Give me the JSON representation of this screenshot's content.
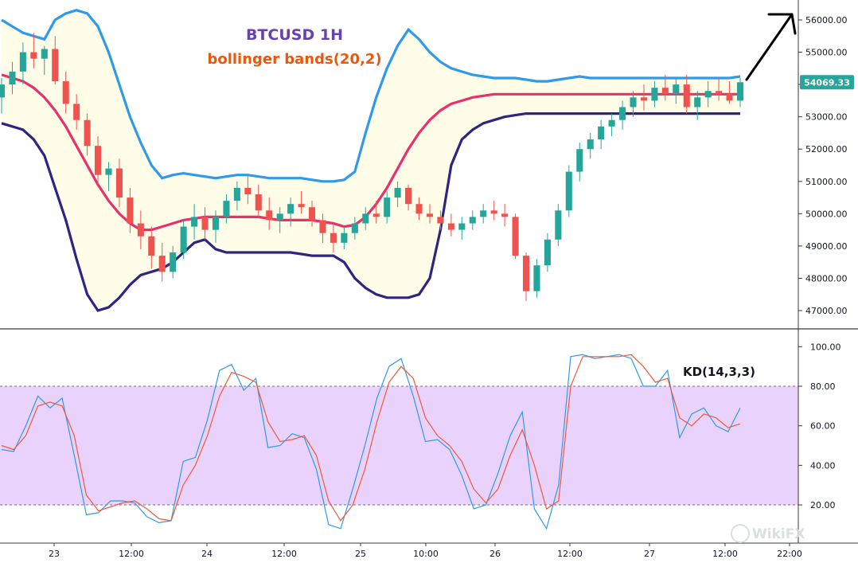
{
  "chart_data": [
    {
      "type": "candlestick",
      "title": "BTCUSD 1H",
      "subtitle": "bollinger bands(20,2)",
      "title_color": "#6a3fb5",
      "subtitle_color": "#e8590c",
      "ylim": [
        46500,
        56500
      ],
      "y_ticks": [
        "47000.00",
        "48000.00",
        "49000.00",
        "50000.00",
        "51000.00",
        "52000.00",
        "53000.00",
        "54000.00",
        "55000.00",
        "56000.00"
      ],
      "last_price": "54069.33",
      "last_price_color": "#26a69a",
      "x_ticks": [
        "23",
        "12:00",
        "24",
        "12:00",
        "25",
        "10:00",
        "26",
        "12:00",
        "27",
        "12:00",
        "22:00"
      ],
      "up_color": "#26a69a",
      "down_color": "#ef5350",
      "candles": [
        [
          53600,
          54200,
          53100,
          54000
        ],
        [
          54000,
          54700,
          53700,
          54400
        ],
        [
          54400,
          55300,
          54000,
          55000
        ],
        [
          55000,
          55600,
          54500,
          54800
        ],
        [
          54800,
          55200,
          54300,
          55100
        ],
        [
          55100,
          55500,
          54000,
          54100
        ],
        [
          54100,
          54400,
          53100,
          53400
        ],
        [
          53400,
          53700,
          52600,
          52900
        ],
        [
          52900,
          53100,
          51800,
          52100
        ],
        [
          52100,
          52400,
          50900,
          51200
        ],
        [
          51200,
          51600,
          50700,
          51400
        ],
        [
          51400,
          51700,
          50200,
          50500
        ],
        [
          50500,
          50800,
          49400,
          49700
        ],
        [
          49700,
          50100,
          48900,
          49300
        ],
        [
          49300,
          49600,
          48300,
          48700
        ],
        [
          48700,
          49100,
          47900,
          48200
        ],
        [
          48200,
          49000,
          48000,
          48800
        ],
        [
          48800,
          49800,
          48600,
          49600
        ],
        [
          49600,
          50300,
          49200,
          49900
        ],
        [
          49900,
          50200,
          49200,
          49500
        ],
        [
          49500,
          50100,
          49100,
          49900
        ],
        [
          49900,
          50600,
          49700,
          50400
        ],
        [
          50400,
          51000,
          50100,
          50800
        ],
        [
          50800,
          51200,
          50300,
          50600
        ],
        [
          50600,
          50900,
          49900,
          50100
        ],
        [
          50100,
          50500,
          49500,
          49800
        ],
        [
          49800,
          50200,
          49400,
          50000
        ],
        [
          50000,
          50500,
          49600,
          50300
        ],
        [
          50300,
          50700,
          50000,
          50200
        ],
        [
          50200,
          50400,
          49600,
          49800
        ],
        [
          49800,
          50000,
          49100,
          49400
        ],
        [
          49400,
          49700,
          48800,
          49100
        ],
        [
          49100,
          49600,
          48900,
          49400
        ],
        [
          49400,
          49900,
          49200,
          49700
        ],
        [
          49700,
          50200,
          49500,
          50000
        ],
        [
          50000,
          50400,
          49700,
          49900
        ],
        [
          49900,
          50700,
          49700,
          50500
        ],
        [
          50500,
          51000,
          50200,
          50800
        ],
        [
          50800,
          50900,
          50100,
          50300
        ],
        [
          50300,
          50500,
          49800,
          50000
        ],
        [
          50000,
          50300,
          49700,
          49900
        ],
        [
          49900,
          50100,
          49500,
          49700
        ],
        [
          49700,
          50000,
          49300,
          49500
        ],
        [
          49500,
          49900,
          49200,
          49700
        ],
        [
          49700,
          50100,
          49500,
          49900
        ],
        [
          49900,
          50300,
          49700,
          50100
        ],
        [
          50100,
          50400,
          49800,
          50000
        ],
        [
          50000,
          50300,
          49600,
          49900
        ],
        [
          49900,
          50000,
          48600,
          48700
        ],
        [
          48700,
          48800,
          47300,
          47600
        ],
        [
          47600,
          48600,
          47400,
          48400
        ],
        [
          48400,
          49400,
          48200,
          49200
        ],
        [
          49200,
          50300,
          49000,
          50100
        ],
        [
          50100,
          51500,
          49900,
          51300
        ],
        [
          51300,
          52200,
          51000,
          52000
        ],
        [
          52000,
          52500,
          51700,
          52300
        ],
        [
          52300,
          52900,
          52000,
          52700
        ],
        [
          52700,
          53100,
          52400,
          52900
        ],
        [
          52900,
          53500,
          52600,
          53300
        ],
        [
          53300,
          53800,
          53000,
          53600
        ],
        [
          53600,
          54000,
          53200,
          53500
        ],
        [
          53500,
          54100,
          53300,
          53900
        ],
        [
          53900,
          54300,
          53500,
          53700
        ],
        [
          53700,
          54200,
          53400,
          54000
        ],
        [
          54000,
          54300,
          53100,
          53300
        ],
        [
          53300,
          53800,
          52900,
          53600
        ],
        [
          53600,
          54100,
          53300,
          53800
        ],
        [
          53800,
          54200,
          53500,
          53700
        ],
        [
          53700,
          54100,
          53400,
          53500
        ],
        [
          53500,
          54200,
          53300,
          54069
        ]
      ],
      "bollinger": {
        "upper": [
          56000,
          55800,
          55600,
          55500,
          55400,
          56000,
          56200,
          56300,
          56200,
          55800,
          55000,
          54000,
          53000,
          52200,
          51500,
          51100,
          51200,
          51250,
          51200,
          51150,
          51100,
          51150,
          51200,
          51200,
          51150,
          51100,
          51100,
          51100,
          51100,
          51050,
          51000,
          51000,
          51050,
          51300,
          52500,
          53600,
          54500,
          55200,
          55700,
          55400,
          55000,
          54700,
          54500,
          54400,
          54300,
          54250,
          54200,
          54200,
          54200,
          54150,
          54100,
          54100,
          54150,
          54200,
          54250,
          54200,
          54200,
          54200,
          54200,
          54200,
          54200,
          54200,
          54200,
          54200,
          54200,
          54200,
          54200,
          54200,
          54200,
          54250
        ],
        "middle": [
          54300,
          54200,
          54100,
          53900,
          53600,
          53200,
          52700,
          52100,
          51500,
          50900,
          50400,
          50000,
          49700,
          49500,
          49500,
          49600,
          49700,
          49800,
          49850,
          49900,
          49900,
          49900,
          49900,
          49900,
          49900,
          49850,
          49800,
          49800,
          49800,
          49800,
          49750,
          49700,
          49600,
          49650,
          49900,
          50300,
          50800,
          51400,
          52000,
          52500,
          52900,
          53200,
          53400,
          53500,
          53600,
          53650,
          53700,
          53700,
          53700,
          53700,
          53700,
          53700,
          53700,
          53700,
          53700,
          53700,
          53700,
          53700,
          53700,
          53700,
          53700,
          53700,
          53700,
          53700,
          53700,
          53700,
          53700,
          53700,
          53700,
          53700
        ],
        "lower": [
          52800,
          52700,
          52600,
          52300,
          51800,
          50800,
          49800,
          48600,
          47500,
          47000,
          47100,
          47400,
          47800,
          48100,
          48200,
          48300,
          48500,
          48800,
          49100,
          49200,
          48900,
          48800,
          48800,
          48800,
          48800,
          48800,
          48800,
          48800,
          48750,
          48700,
          48700,
          48700,
          48500,
          48000,
          47700,
          47500,
          47400,
          47400,
          47400,
          47500,
          48000,
          49500,
          51500,
          52300,
          52600,
          52800,
          52900,
          53000,
          53050,
          53100,
          53100,
          53100,
          53100,
          53100,
          53100,
          53100,
          53100,
          53100,
          53100,
          53100,
          53100,
          53100,
          53100,
          53100,
          53100,
          53100,
          53100,
          53100,
          53100,
          53100
        ]
      },
      "band_colors": {
        "upper": "#2f9be8",
        "middle": "#e9306a",
        "lower": "#2d2483",
        "fill": "#fffce8"
      }
    },
    {
      "type": "line",
      "title": "KD(14,3,3)",
      "ylim": [
        0,
        105
      ],
      "y_ticks": [
        "20.00",
        "40.00",
        "60.00",
        "80.00",
        "100.00"
      ],
      "band": [
        20,
        80
      ],
      "band_color": "#e9d2fb",
      "series": [
        {
          "color": "#2f9be8",
          "values": [
            48,
            47,
            60,
            75,
            69,
            74,
            45,
            15,
            16,
            22,
            22,
            21,
            14,
            11,
            12,
            42,
            44,
            63,
            88,
            91,
            78,
            84,
            49,
            50,
            56,
            54,
            38,
            10,
            8,
            28,
            50,
            74,
            90,
            94,
            75,
            52,
            53,
            48,
            35,
            18,
            20,
            36,
            55,
            67,
            18,
            8,
            30,
            95,
            96,
            94,
            95,
            96,
            94,
            80,
            80,
            88,
            54,
            66,
            69,
            60,
            57,
            69
          ]
        },
        {
          "color": "#f0593a",
          "values": [
            50,
            48,
            55,
            70,
            72,
            70,
            55,
            25,
            17,
            19,
            21,
            22,
            18,
            13,
            12,
            30,
            40,
            55,
            75,
            87,
            85,
            82,
            62,
            52,
            53,
            55,
            45,
            22,
            12,
            20,
            38,
            62,
            82,
            90,
            84,
            64,
            55,
            50,
            42,
            28,
            21,
            28,
            45,
            58,
            40,
            18,
            22,
            80,
            95,
            95,
            95,
            95,
            96,
            90,
            82,
            84,
            64,
            60,
            66,
            64,
            59,
            61
          ]
        }
      ]
    }
  ],
  "watermark": "WikiFX",
  "annotation": "up-arrow"
}
